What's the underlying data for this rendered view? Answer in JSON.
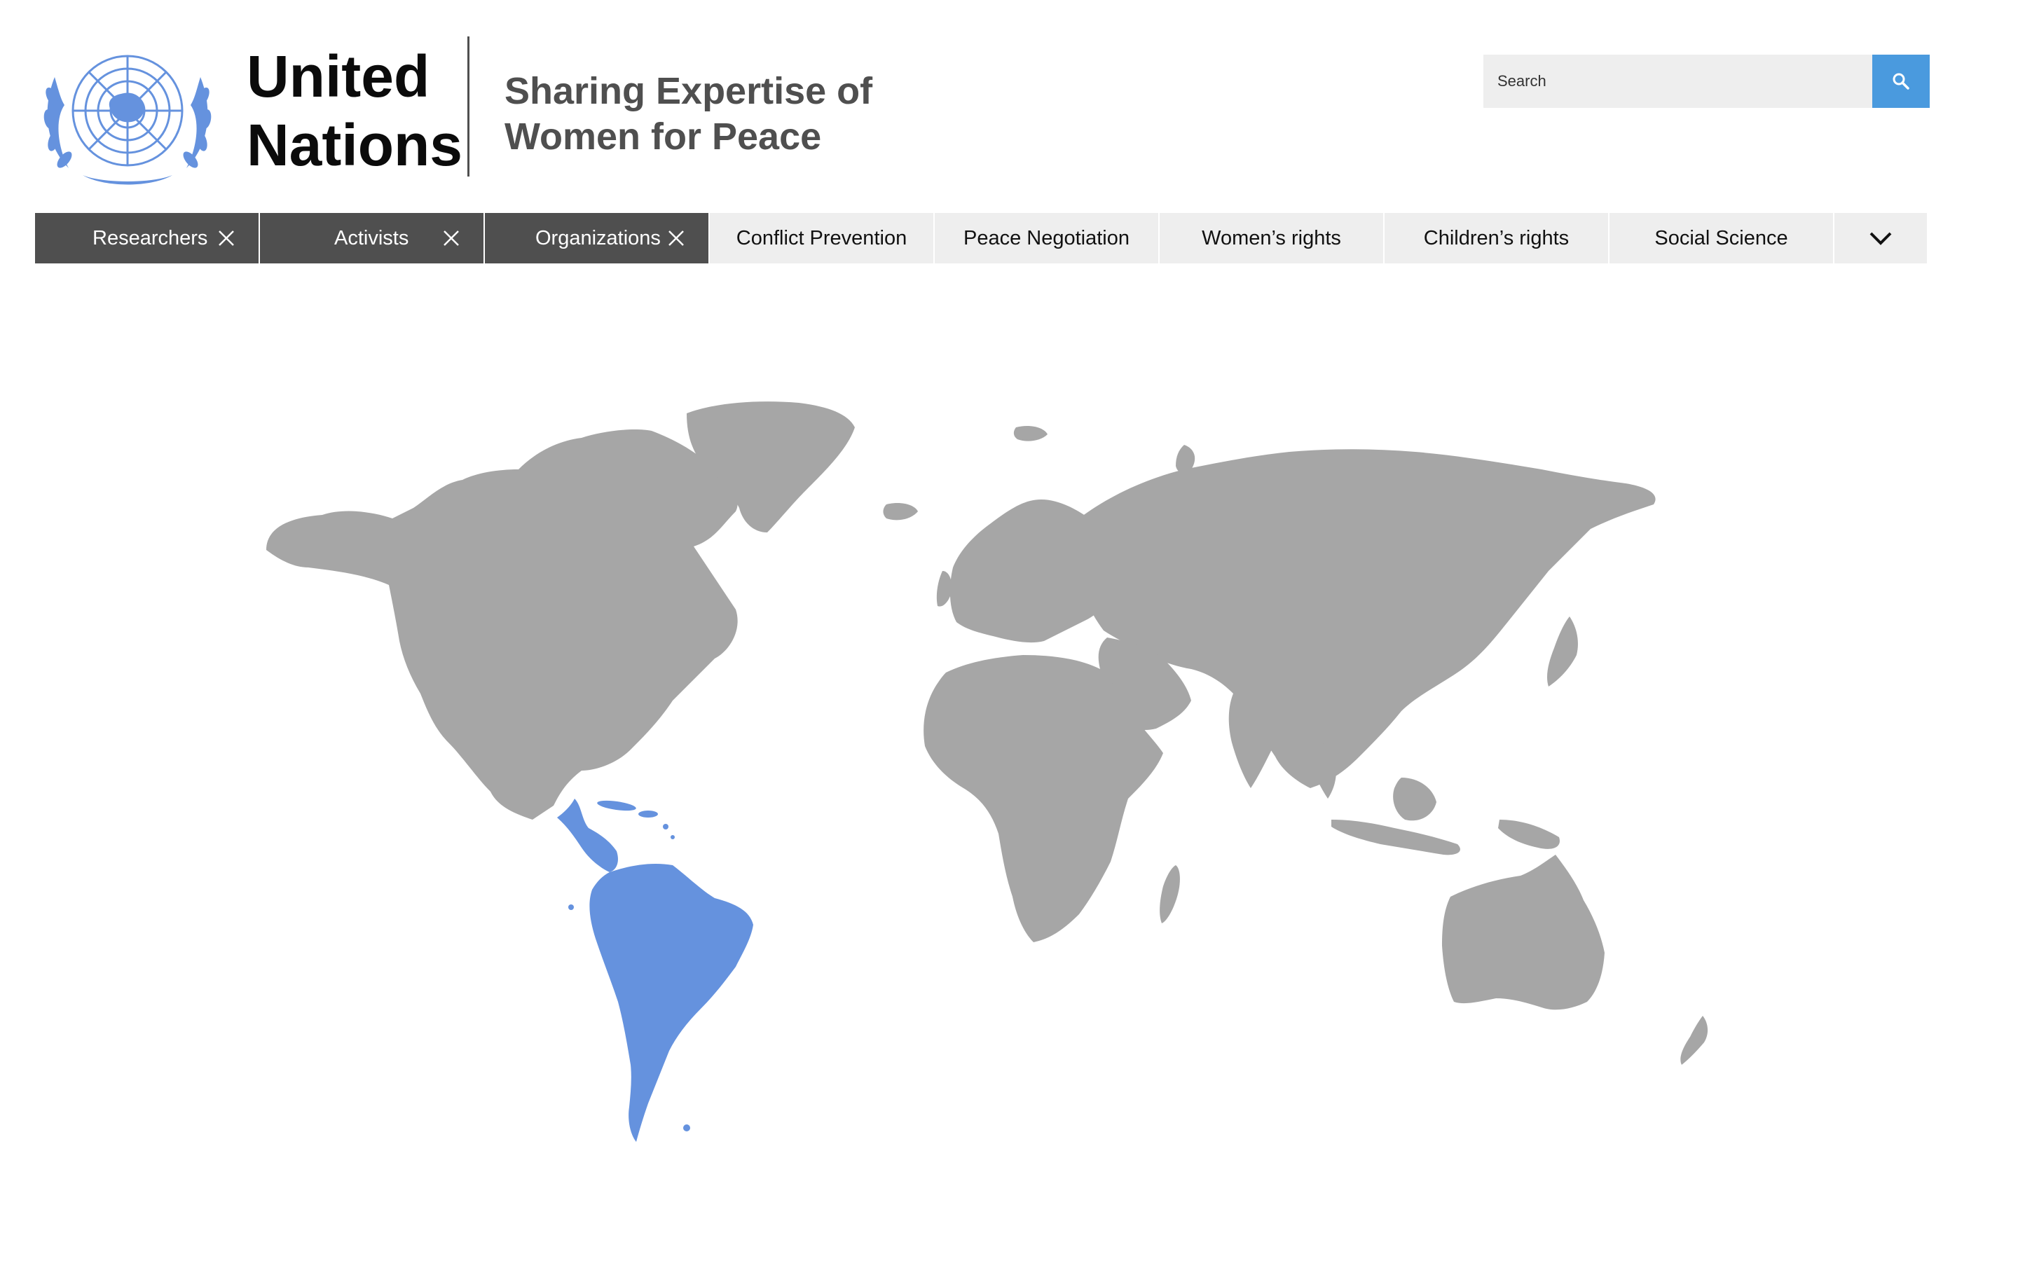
{
  "header": {
    "org_name_line1": "United",
    "org_name_line2": "Nations",
    "tagline_line1": "Sharing Expertise of",
    "tagline_line2": "Women for Peace",
    "logo_icon": "un-emblem-icon"
  },
  "search": {
    "placeholder": "Search",
    "button_icon": "search-icon"
  },
  "filters": {
    "active": [
      {
        "label": "Researchers",
        "icon": "close-icon"
      },
      {
        "label": "Activists",
        "icon": "close-icon"
      },
      {
        "label": "Organizations",
        "icon": "close-icon"
      }
    ],
    "inactive": [
      {
        "label": "Conflict Prevention"
      },
      {
        "label": "Peace Negotiation"
      },
      {
        "label": "Women’s rights"
      },
      {
        "label": "Children’s rights"
      },
      {
        "label": "Social Science"
      }
    ],
    "more_icon": "chevron-down-icon"
  },
  "map": {
    "highlighted_region": "Latin America and the Caribbean",
    "colors": {
      "land": "#a6a6a6",
      "highlight": "#6592de",
      "active_tab": "#4f4f4f",
      "inactive_tab": "#eeeeee",
      "search_button": "#4a9ade"
    }
  }
}
